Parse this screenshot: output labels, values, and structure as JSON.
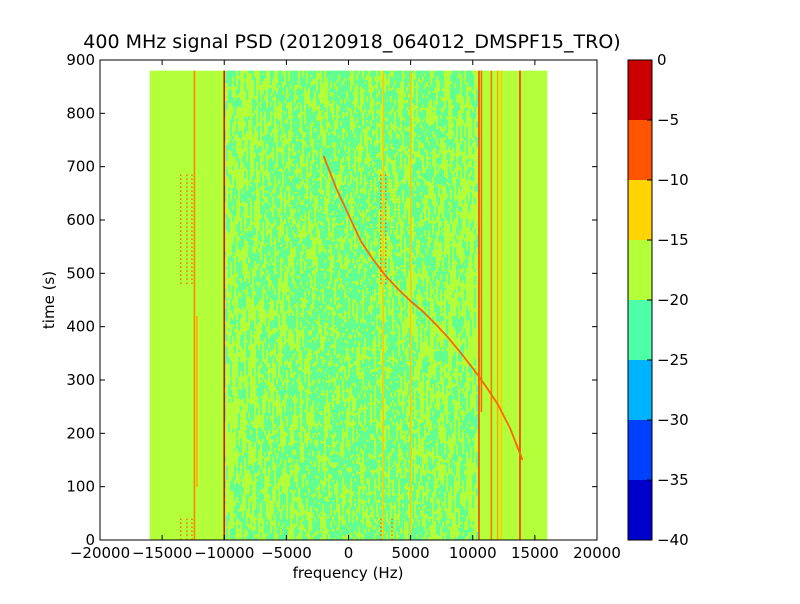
{
  "chart_data": {
    "type": "heatmap",
    "title": "400 MHz signal PSD (20120918_064012_DMSPF15_TRO)",
    "xlabel": "frequency (Hz)",
    "ylabel": "time (s)",
    "xlim": [
      -20000,
      20000
    ],
    "ylim": [
      0,
      900
    ],
    "x_ticks": [
      -20000,
      -15000,
      -10000,
      -5000,
      0,
      5000,
      10000,
      15000,
      20000
    ],
    "x_tick_labels": [
      "−20000",
      "−15000",
      "−10000",
      "−5000",
      "0",
      "5000",
      "10000",
      "15000",
      "20000"
    ],
    "y_ticks": [
      0,
      100,
      200,
      300,
      400,
      500,
      600,
      700,
      800,
      900
    ],
    "y_tick_labels": [
      "0",
      "100",
      "200",
      "300",
      "400",
      "500",
      "600",
      "700",
      "800",
      "900"
    ],
    "data_extent": {
      "x": [
        -16000,
        16000
      ],
      "y": [
        0,
        880
      ]
    },
    "background_level_color": "#b3ff3a",
    "noise_band": {
      "x": [
        -10000,
        10500
      ],
      "color": "#4dffa6"
    },
    "colorbar": {
      "range": [
        -40,
        0
      ],
      "tick_values": [
        0,
        -5,
        -10,
        -15,
        -20,
        -25,
        -30,
        -35,
        -40
      ],
      "tick_labels": [
        "0",
        "−5",
        "−10",
        "−15",
        "−20",
        "−25",
        "−30",
        "−35",
        "−40"
      ],
      "levels": [
        {
          "from": -40,
          "to": -35,
          "color": "#0000cc"
        },
        {
          "from": -35,
          "to": -30,
          "color": "#0040ff"
        },
        {
          "from": -30,
          "to": -25,
          "color": "#00b3ff"
        },
        {
          "from": -25,
          "to": -20,
          "color": "#4dffa6"
        },
        {
          "from": -20,
          "to": -15,
          "color": "#b3ff3a"
        },
        {
          "from": -15,
          "to": -10,
          "color": "#ffd400"
        },
        {
          "from": -10,
          "to": -5,
          "color": "#ff5500"
        },
        {
          "from": -5,
          "to": 0,
          "color": "#cc0000"
        }
      ]
    },
    "vertical_lines": [
      {
        "x": -12400,
        "y": [
          0,
          880
        ],
        "color": "#ff8800"
      },
      {
        "x": -12200,
        "y": [
          100,
          420
        ],
        "color": "#ffaa00"
      },
      {
        "x": -10000,
        "y": [
          0,
          880
        ],
        "color": "#dd1100"
      },
      {
        "x": 2800,
        "y": [
          0,
          880
        ],
        "color": "#ffcc00"
      },
      {
        "x": 5000,
        "y": [
          0,
          880
        ],
        "color": "#ffcc00"
      },
      {
        "x": 10500,
        "y": [
          0,
          880
        ],
        "color": "#ff4400"
      },
      {
        "x": 10700,
        "y": [
          240,
          880
        ],
        "color": "#ff6600"
      },
      {
        "x": 11500,
        "y": [
          0,
          880
        ],
        "color": "#ff7700"
      },
      {
        "x": 12000,
        "y": [
          0,
          880
        ],
        "color": "#ffaa00"
      },
      {
        "x": 12300,
        "y": [
          0,
          880
        ],
        "color": "#ffcc00"
      },
      {
        "x": 13800,
        "y": [
          0,
          880
        ],
        "color": "#ff3300"
      }
    ],
    "doppler_trace": {
      "color": "#ff6600",
      "points": [
        [
          -2000,
          720
        ],
        [
          -1000,
          660
        ],
        [
          0,
          610
        ],
        [
          1000,
          560
        ],
        [
          2000,
          525
        ],
        [
          3000,
          495
        ],
        [
          4000,
          470
        ],
        [
          5000,
          448
        ],
        [
          6000,
          428
        ],
        [
          7000,
          405
        ],
        [
          8000,
          380
        ],
        [
          9000,
          352
        ],
        [
          10000,
          322
        ],
        [
          11000,
          290
        ],
        [
          12000,
          255
        ],
        [
          13000,
          210
        ],
        [
          14000,
          150
        ]
      ]
    },
    "dotted_markers": [
      {
        "x": -13500,
        "y": [
          480,
          690
        ]
      },
      {
        "x": -13000,
        "y": [
          480,
          690
        ]
      },
      {
        "x": -12600,
        "y": [
          480,
          690
        ]
      },
      {
        "x": -13500,
        "y": [
          0,
          40
        ]
      },
      {
        "x": -13000,
        "y": [
          0,
          40
        ]
      },
      {
        "x": -12600,
        "y": [
          0,
          40
        ]
      },
      {
        "x": 2600,
        "y": [
          480,
          690
        ]
      },
      {
        "x": 3000,
        "y": [
          480,
          690
        ]
      },
      {
        "x": 2600,
        "y": [
          0,
          40
        ]
      },
      {
        "x": 3500,
        "y": [
          0,
          40
        ]
      }
    ]
  }
}
